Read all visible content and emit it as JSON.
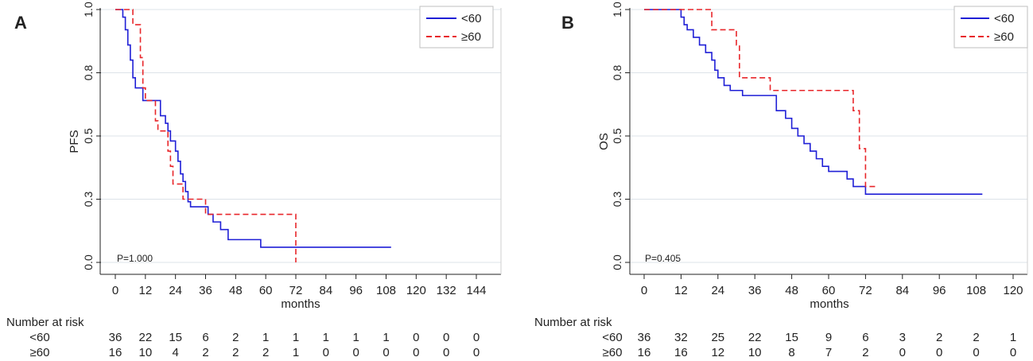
{
  "colors": {
    "under60": "#1f1fd6",
    "over60": "#e8262a",
    "grid": "#dde3e9",
    "text": "#222222",
    "frame": "#bfbfbf"
  },
  "chart_data": [
    {
      "type": "line",
      "panel_label": "A",
      "ylabel": "PFS",
      "xlabel": "months",
      "xlim": [
        0,
        150
      ],
      "ylim": [
        0,
        1.0
      ],
      "xticks": [
        0,
        12,
        24,
        36,
        48,
        60,
        72,
        84,
        96,
        108,
        120,
        132,
        144
      ],
      "yticks": [
        0.0,
        0.25,
        0.5,
        0.75,
        1.0
      ],
      "ytick_labels": [
        "0.0",
        "0.3",
        "0.5",
        "0.8",
        "1.0"
      ],
      "annotation": "P=1.000",
      "legend": {
        "placement": "top-right",
        "entries": [
          "<60",
          "≥60"
        ]
      },
      "series": [
        {
          "name": "<60",
          "style": "solid",
          "steps": [
            [
              0,
              1.0
            ],
            [
              3,
              0.97
            ],
            [
              4,
              0.92
            ],
            [
              5,
              0.86
            ],
            [
              6,
              0.8
            ],
            [
              7,
              0.73
            ],
            [
              8,
              0.69
            ],
            [
              11,
              0.64
            ],
            [
              12,
              0.64
            ],
            [
              17,
              0.64
            ],
            [
              18,
              0.58
            ],
            [
              20,
              0.55
            ],
            [
              21,
              0.52
            ],
            [
              22,
              0.48
            ],
            [
              24,
              0.44
            ],
            [
              25,
              0.4
            ],
            [
              26,
              0.35
            ],
            [
              27,
              0.32
            ],
            [
              28,
              0.28
            ],
            [
              29,
              0.24
            ],
            [
              30,
              0.22
            ],
            [
              36,
              0.22
            ],
            [
              37,
              0.19
            ],
            [
              39,
              0.16
            ],
            [
              42,
              0.13
            ],
            [
              45,
              0.09
            ],
            [
              58,
              0.06
            ],
            [
              110,
              0.06
            ]
          ]
        },
        {
          "name": "≥60",
          "style": "dashed",
          "steps": [
            [
              0,
              1.0
            ],
            [
              6,
              1.0
            ],
            [
              7,
              0.94
            ],
            [
              10,
              0.81
            ],
            [
              11,
              0.69
            ],
            [
              12,
              0.64
            ],
            [
              16,
              0.56
            ],
            [
              17,
              0.52
            ],
            [
              19,
              0.52
            ],
            [
              21,
              0.44
            ],
            [
              22,
              0.38
            ],
            [
              23,
              0.31
            ],
            [
              27,
              0.25
            ],
            [
              30,
              0.25
            ],
            [
              36,
              0.19
            ],
            [
              72,
              0.19
            ],
            [
              72,
              0.0
            ]
          ]
        }
      ],
      "risk_table": {
        "title": "Number at risk",
        "rows": [
          {
            "label": "<60",
            "values": [
              "36",
              "22",
              "15",
              "6",
              "2",
              "1",
              "1",
              "1",
              "1",
              "1",
              "0",
              "0",
              "0"
            ]
          },
          {
            "label": "≥60",
            "values": [
              "16",
              "10",
              "4",
              "2",
              "2",
              "2",
              "1",
              "0",
              "0",
              "0",
              "0",
              "0",
              "0"
            ]
          }
        ]
      }
    },
    {
      "type": "line",
      "panel_label": "B",
      "ylabel": "OS",
      "xlabel": "months",
      "xlim": [
        0,
        120
      ],
      "ylim": [
        0,
        1.0
      ],
      "xticks": [
        0,
        12,
        24,
        36,
        48,
        60,
        72,
        84,
        96,
        108,
        120
      ],
      "yticks": [
        0.0,
        0.25,
        0.5,
        0.75,
        1.0
      ],
      "ytick_labels": [
        "0.0",
        "0.3",
        "0.5",
        "0.8",
        "1.0"
      ],
      "annotation": "P=0.405",
      "legend": {
        "placement": "top-right",
        "entries": [
          "<60",
          "≥60"
        ]
      },
      "series": [
        {
          "name": "<60",
          "style": "solid",
          "steps": [
            [
              0,
              1.0
            ],
            [
              11,
              1.0
            ],
            [
              12,
              0.97
            ],
            [
              13,
              0.94
            ],
            [
              14,
              0.92
            ],
            [
              16,
              0.89
            ],
            [
              18,
              0.86
            ],
            [
              20,
              0.83
            ],
            [
              22,
              0.8
            ],
            [
              23,
              0.76
            ],
            [
              24,
              0.73
            ],
            [
              26,
              0.7
            ],
            [
              28,
              0.68
            ],
            [
              32,
              0.66
            ],
            [
              36,
              0.66
            ],
            [
              41,
              0.66
            ],
            [
              43,
              0.6
            ],
            [
              46,
              0.57
            ],
            [
              48,
              0.53
            ],
            [
              50,
              0.5
            ],
            [
              52,
              0.47
            ],
            [
              54,
              0.44
            ],
            [
              56,
              0.41
            ],
            [
              58,
              0.38
            ],
            [
              60,
              0.36
            ],
            [
              64,
              0.36
            ],
            [
              66,
              0.33
            ],
            [
              68,
              0.3
            ],
            [
              72,
              0.27
            ],
            [
              110,
              0.27
            ]
          ]
        },
        {
          "name": "≥60",
          "style": "dashed",
          "steps": [
            [
              0,
              1.0
            ],
            [
              21,
              1.0
            ],
            [
              22,
              0.92
            ],
            [
              30,
              0.86
            ],
            [
              31,
              0.73
            ],
            [
              40,
              0.73
            ],
            [
              41,
              0.68
            ],
            [
              67,
              0.68
            ],
            [
              68,
              0.6
            ],
            [
              70,
              0.45
            ],
            [
              72,
              0.3
            ],
            [
              76,
              0.3
            ]
          ]
        }
      ],
      "risk_table": {
        "title": "Number at risk",
        "rows": [
          {
            "label": "<60",
            "values": [
              "36",
              "32",
              "25",
              "22",
              "15",
              "9",
              "6",
              "3",
              "2",
              "2",
              "1"
            ]
          },
          {
            "label": "≥60",
            "values": [
              "16",
              "16",
              "12",
              "10",
              "8",
              "7",
              "2",
              "0",
              "0",
              "0",
              "0"
            ]
          }
        ]
      }
    }
  ]
}
